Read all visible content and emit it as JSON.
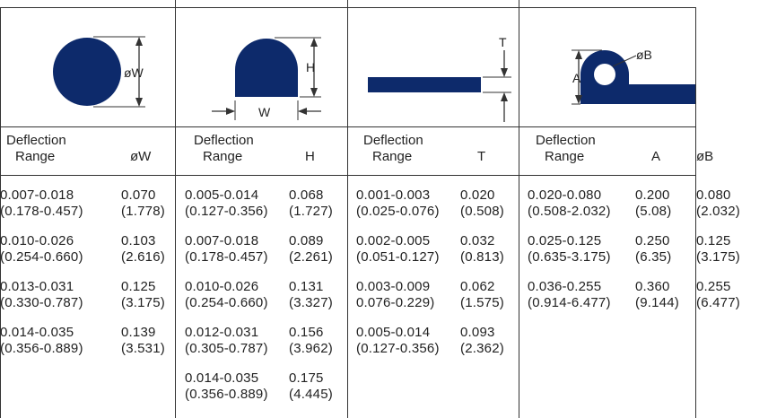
{
  "sections": [
    {
      "id": "round",
      "dim_label": "øW",
      "header_line1": "Deflection",
      "header_line2": "Range",
      "col2": "øW",
      "rows": [
        {
          "range": "0.007-0.018",
          "range_mm": "(0.178-0.457)",
          "v1": "0.070",
          "v1_mm": "(1.778)"
        },
        {
          "range": "0.010-0.026",
          "range_mm": "(0.254-0.660)",
          "v1": "0.103",
          "v1_mm": "(2.616)"
        },
        {
          "range": "0.013-0.031",
          "range_mm": "(0.330-0.787)",
          "v1": "0.125",
          "v1_mm": "(3.175)"
        },
        {
          "range": "0.014-0.035",
          "range_mm": "(0.356-0.889)",
          "v1": "0.139",
          "v1_mm": "(3.531)"
        }
      ]
    },
    {
      "id": "d-shape",
      "dim_label_h": "H",
      "dim_label_w": "W",
      "header_line1": "Deflection",
      "header_line2": "Range",
      "col2": "H",
      "rows": [
        {
          "range": "0.005-0.014",
          "range_mm": "(0.127-0.356)",
          "v1": "0.068",
          "v1_mm": "(1.727)"
        },
        {
          "range": "0.007-0.018",
          "range_mm": "(0.178-0.457)",
          "v1": "0.089",
          "v1_mm": "(2.261)"
        },
        {
          "range": "0.010-0.026",
          "range_mm": "(0.254-0.660)",
          "v1": "0.131",
          "v1_mm": "(3.327)"
        },
        {
          "range": "0.012-0.031",
          "range_mm": "(0.305-0.787)",
          "v1": "0.156",
          "v1_mm": "(3.962)"
        },
        {
          "range": "0.014-0.035",
          "range_mm": "(0.356-0.889)",
          "v1": "0.175",
          "v1_mm": "(4.445)"
        }
      ]
    },
    {
      "id": "flat",
      "dim_label": "T",
      "header_line1": "Deflection",
      "header_line2": "Range",
      "col2": "T",
      "rows": [
        {
          "range": "0.001-0.003",
          "range_mm": "(0.025-0.076)",
          "v1": "0.020",
          "v1_mm": "(0.508)"
        },
        {
          "range": "0.002-0.005",
          "range_mm": "(0.051-0.127)",
          "v1": "0.032",
          "v1_mm": "(0.813)"
        },
        {
          "range": "0.003-0.009",
          "range_mm": "0.076-0.229)",
          "v1": "0.062",
          "v1_mm": "(1.575)"
        },
        {
          "range": "0.005-0.014",
          "range_mm": "(0.127-0.356)",
          "v1": "0.093",
          "v1_mm": "(2.362)"
        }
      ]
    },
    {
      "id": "p-shape",
      "dim_label_a": "A",
      "dim_label_b": "øB",
      "header_line1": "Deflection",
      "header_line2": "Range",
      "col2": "A",
      "col3": "øB",
      "rows": [
        {
          "range": "0.020-0.080",
          "range_mm": "(0.508-2.032)",
          "v1": "0.200",
          "v1_mm": "(5.08)",
          "v2": "0.080",
          "v2_mm": "(2.032)"
        },
        {
          "range": "0.025-0.125",
          "range_mm": "(0.635-3.175)",
          "v1": "0.250",
          "v1_mm": "(6.35)",
          "v2": "0.125",
          "v2_mm": "(3.175)"
        },
        {
          "range": "0.036-0.255",
          "range_mm": "(0.914-6.477)",
          "v1": "0.360",
          "v1_mm": "(9.144)",
          "v2": "0.255",
          "v2_mm": "(6.477)"
        }
      ]
    }
  ],
  "colors": {
    "shape_fill": "#0d2a6b",
    "line": "#333333"
  }
}
